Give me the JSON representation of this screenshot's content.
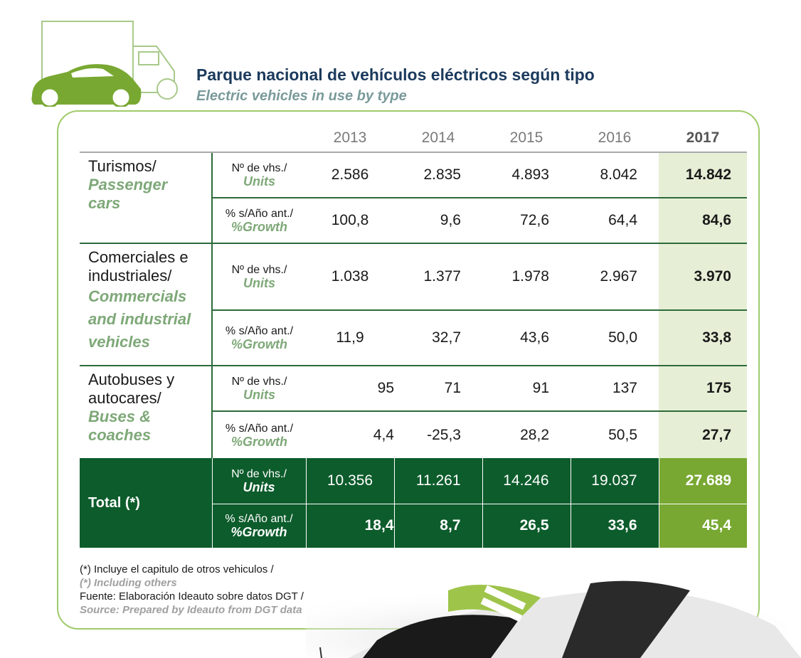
{
  "title": {
    "es": "Parque nacional de vehículos eléctricos según tipo",
    "en": "Electric vehicles in use by type"
  },
  "years": [
    "2013",
    "2014",
    "2015",
    "2016",
    "2017"
  ],
  "metrics": {
    "units": {
      "es": "Nº de vhs./",
      "en": "Units"
    },
    "growth": {
      "es": "% s/Año ant./",
      "en": "%Growth"
    }
  },
  "categories": [
    {
      "es": "Turismos/",
      "en": "Passenger cars",
      "units": [
        "2.586",
        "2.835",
        "4.893",
        "8.042",
        "14.842"
      ],
      "growth": [
        "100,8",
        "9,6",
        "72,6",
        "64,4",
        "84,6"
      ]
    },
    {
      "es": "Comerciales e industriales/",
      "en": "Commercials and industrial vehicles",
      "units": [
        "1.038",
        "1.377",
        "1.978",
        "2.967",
        "3.970"
      ],
      "growth": [
        "11,9",
        "32,7",
        "43,6",
        "50,0",
        "33,8"
      ]
    },
    {
      "es": "Autobuses y autocares/",
      "en": "Buses & coaches",
      "units": [
        "95",
        "71",
        "91",
        "137",
        "175"
      ],
      "growth": [
        "4,4",
        "-25,3",
        "28,2",
        "50,5",
        "27,7"
      ]
    }
  ],
  "total": {
    "label": "Total (*)",
    "units": [
      "10.356",
      "11.261",
      "14.246",
      "19.037",
      "27.689"
    ],
    "growth": [
      "18,4",
      "8,7",
      "26,5",
      "33,6",
      "45,4"
    ]
  },
  "notes": {
    "note_es": "(*) Incluye el capitulo de otros vehiculos /",
    "note_en": "(*) Including others",
    "source_es": "Fuente: Elaboración Ideauto sobre datos DGT /",
    "source_en": "Source: Prepared by Ideauto from DGT data"
  },
  "colors": {
    "dark_green": "#0d5c2c",
    "light_green": "#78a832",
    "highlight": "#e6efd6",
    "accent": "#7ea878",
    "title": "#1b3a5c"
  }
}
